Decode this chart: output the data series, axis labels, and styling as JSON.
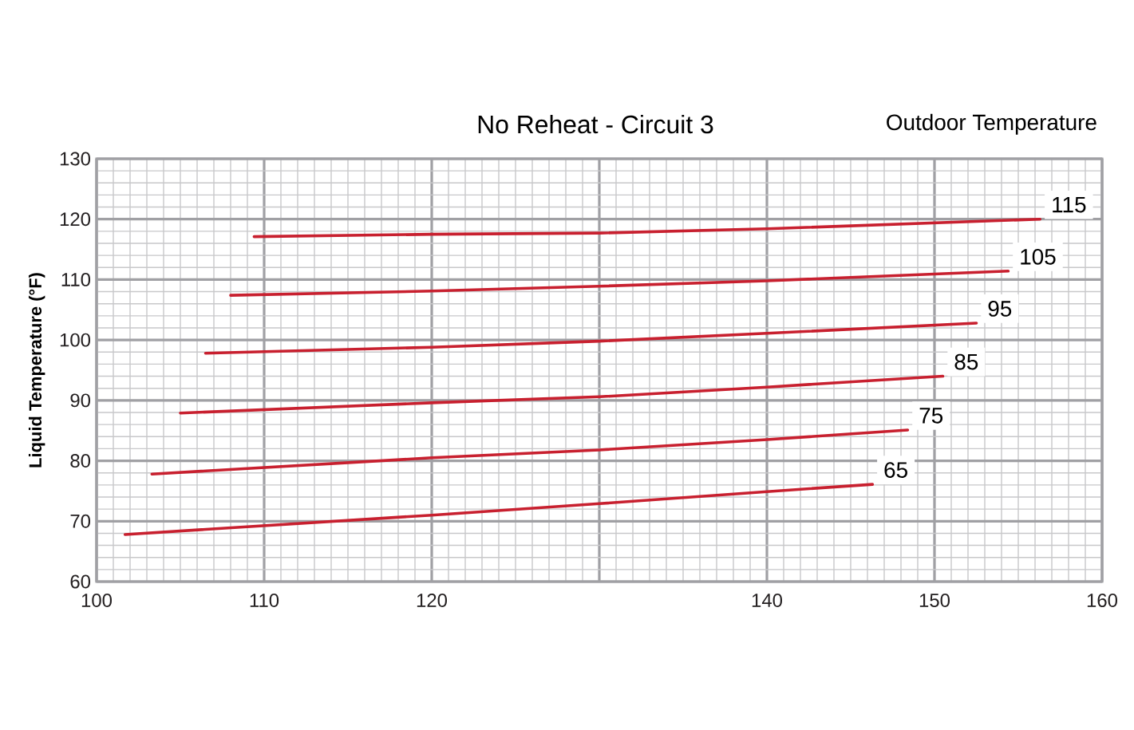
{
  "chart_data": {
    "type": "line",
    "title": "No Reheat - Circuit 3",
    "legend_title": "Outdoor Temperature",
    "ylabel": "Liquid Temperature (°F)",
    "xlim": [
      100,
      160
    ],
    "xticks": [
      100,
      110,
      120,
      {
        "value": 130,
        "label": null
      },
      140,
      150,
      160
    ],
    "ylim": [
      60,
      130
    ],
    "yticks": [
      60,
      70,
      80,
      90,
      100,
      110,
      120,
      130
    ],
    "grid": true,
    "marker": "none",
    "line_style": "solid",
    "series": [
      {
        "name": "115",
        "color": "#c8202f",
        "x": [
          109.4,
          120,
          130,
          140,
          156.3
        ],
        "values": [
          117.1,
          117.5,
          117.7,
          118.4,
          120.0
        ]
      },
      {
        "name": "105",
        "color": "#c8202f",
        "x": [
          108.0,
          120,
          130,
          140,
          154.4
        ],
        "values": [
          107.4,
          108.1,
          108.9,
          109.8,
          111.4
        ]
      },
      {
        "name": "95",
        "color": "#c8202f",
        "x": [
          106.5,
          120,
          130,
          140,
          152.5
        ],
        "values": [
          97.8,
          98.8,
          99.8,
          101.1,
          102.8
        ]
      },
      {
        "name": "85",
        "color": "#c8202f",
        "x": [
          105.0,
          120,
          130,
          140,
          150.5
        ],
        "values": [
          87.9,
          89.6,
          90.6,
          92.2,
          94.0
        ]
      },
      {
        "name": "75",
        "color": "#c8202f",
        "x": [
          103.3,
          120,
          130,
          140,
          148.4
        ],
        "values": [
          77.8,
          80.5,
          81.8,
          83.5,
          85.1
        ]
      },
      {
        "name": "65",
        "color": "#c8202f",
        "x": [
          101.7,
          120,
          130,
          140,
          146.3
        ],
        "values": [
          67.8,
          71.0,
          72.9,
          74.9,
          76.1
        ]
      }
    ]
  }
}
